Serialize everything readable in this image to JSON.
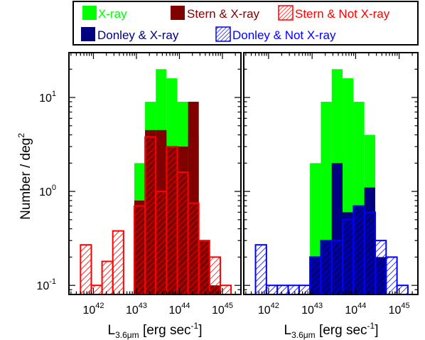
{
  "legend": {
    "items": [
      {
        "label": "X-ray",
        "color": "#00ff00",
        "style": "solid"
      },
      {
        "label": "Stern & X-ray",
        "color": "#800000",
        "style": "solid"
      },
      {
        "label": "Stern & Not X-ray",
        "color": "#ff0000",
        "style": "hatched"
      },
      {
        "label": "Donley & X-ray",
        "color": "#000080",
        "style": "solid"
      },
      {
        "label": "Donley & Not X-ray",
        "color": "#0000ff",
        "style": "hatched"
      }
    ]
  },
  "axes": {
    "ylabel_main": "Number / deg",
    "ylabel_sup": "2",
    "xlabel_main": "L",
    "xlabel_sub": "3.6μm",
    "xlabel_rest": " [erg sec",
    "xlabel_sup": "-1",
    "xlabel_close": "]",
    "x_tick_base": "10",
    "x_tick_exps": [
      "42",
      "43",
      "44",
      "45"
    ],
    "y_tick_base": "10",
    "y_tick_exps": [
      "-1",
      "0",
      "1"
    ]
  },
  "chart_data": [
    {
      "type": "bar",
      "panel": "left",
      "x_scale": "log",
      "y_scale": "log",
      "x_range_log10": [
        41.43,
        45.43
      ],
      "ylim": [
        0.08,
        30
      ],
      "bin_edges_log10": [
        41.7,
        41.95,
        42.2,
        42.45,
        42.7,
        42.95,
        43.2,
        43.45,
        43.7,
        43.95,
        44.2,
        44.45,
        44.7,
        44.95,
        45.2
      ],
      "series": [
        {
          "name": "X-ray",
          "values": [
            0,
            0,
            0,
            0,
            0,
            2.0,
            9.0,
            20.0,
            16.0,
            9.0,
            4.0,
            0,
            0,
            0
          ]
        },
        {
          "name": "Stern & X-ray",
          "values": [
            0,
            0,
            0,
            0,
            0,
            0.8,
            4.5,
            4.5,
            3.0,
            3.0,
            9.0,
            0.3,
            0.1,
            0
          ]
        },
        {
          "name": "Stern & Not X-ray",
          "values": [
            0.27,
            0.1,
            0.18,
            0.38,
            0.0,
            0.7,
            3.8,
            1.0,
            3.0,
            1.6,
            0.75,
            0.3,
            0.2,
            0.1
          ]
        }
      ]
    },
    {
      "type": "bar",
      "panel": "right",
      "x_scale": "log",
      "y_scale": "log",
      "x_range_log10": [
        41.43,
        45.43
      ],
      "ylim": [
        0.08,
        30
      ],
      "bin_edges_log10": [
        41.7,
        41.95,
        42.2,
        42.45,
        42.7,
        42.95,
        43.2,
        43.45,
        43.7,
        43.95,
        44.2,
        44.45,
        44.7,
        44.95,
        45.2
      ],
      "series": [
        {
          "name": "X-ray",
          "values": [
            0,
            0,
            0,
            0,
            0,
            2.0,
            9.0,
            20.0,
            16.0,
            9.0,
            4.0,
            0,
            0,
            0
          ]
        },
        {
          "name": "Donley & X-ray",
          "values": [
            0,
            0,
            0,
            0,
            0,
            0.2,
            0.3,
            2.0,
            0.6,
            0.7,
            1.1,
            0.2,
            0.06,
            0
          ]
        },
        {
          "name": "Donley & Not X-ray",
          "values": [
            0.27,
            0.1,
            0.1,
            0.1,
            0.1,
            0.2,
            0.3,
            0.3,
            0.5,
            0.7,
            0.6,
            0.3,
            0.2,
            0.1
          ]
        }
      ]
    }
  ]
}
